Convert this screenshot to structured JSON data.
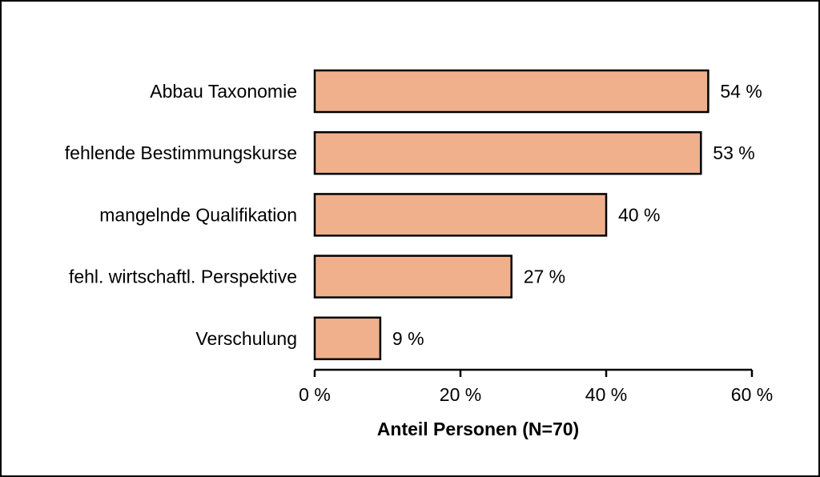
{
  "chart_data": {
    "type": "bar",
    "orientation": "horizontal",
    "categories": [
      "Abbau Taxonomie",
      "fehlende Bestimmungskurse",
      "mangelnde Qualifikation",
      "fehl. wirtschaftl. Perspektive",
      "Verschulung"
    ],
    "values": [
      54,
      53,
      40,
      27,
      9
    ],
    "value_labels": [
      "54 %",
      "53 %",
      "40 %",
      "27 %",
      "9 %"
    ],
    "xlabel": "Anteil Personen (N=70)",
    "xlim": [
      0,
      60
    ],
    "xticks": [
      0,
      20,
      40,
      60
    ],
    "xtick_labels": [
      "0 %",
      "20 %",
      "40 %",
      "60 %"
    ],
    "grid": false,
    "bar_color": "#efb08b",
    "bar_edge_color": "#000000"
  }
}
